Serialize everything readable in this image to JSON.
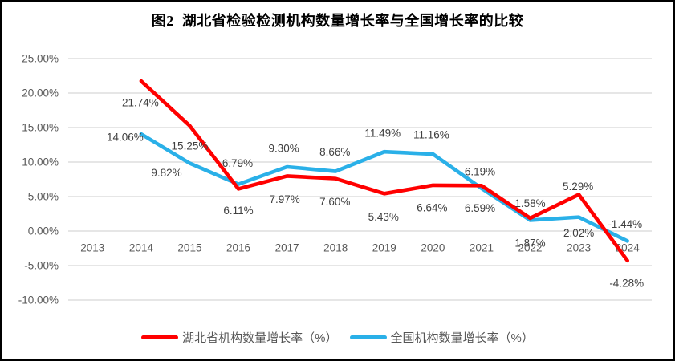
{
  "chart_data": {
    "type": "line",
    "title": "图2  湖北省检验检测机构数量增长率与全国增长率的比较",
    "categories": [
      "2013",
      "2014",
      "2015",
      "2016",
      "2017",
      "2018",
      "2019",
      "2020",
      "2021",
      "2022",
      "2023",
      "2024"
    ],
    "series": [
      {
        "name": "湖北省机构数量增长率（%）",
        "color": "#FF0000",
        "start_category": "2014",
        "values": [
          21.74,
          15.25,
          6.11,
          7.97,
          7.6,
          5.43,
          6.64,
          6.59,
          1.87,
          5.29,
          -4.28
        ]
      },
      {
        "name": "全国机构数量增长率（%）",
        "color": "#2AB0E8",
        "start_category": "2014",
        "values": [
          14.06,
          9.82,
          6.79,
          9.3,
          8.66,
          11.49,
          11.16,
          6.19,
          1.58,
          2.02,
          -1.44
        ]
      }
    ],
    "xlabel": "",
    "ylabel": "",
    "ylim": [
      -10,
      25
    ],
    "ytick_step": 5,
    "ytick_labels": [
      "25.00%",
      "20.00%",
      "15.00%",
      "10.00%",
      "5.00%",
      "0.00%",
      "-5.00%",
      "-10.00%"
    ],
    "grid": true,
    "data_labels": true,
    "legend_position": "bottom",
    "styles": {
      "background": "#FFFFFF",
      "border_color": "#000000",
      "gridline_color": "#DEDEDE",
      "axis_text_color": "#595959",
      "data_label_color": "#404040",
      "title_color": "#000000"
    }
  }
}
